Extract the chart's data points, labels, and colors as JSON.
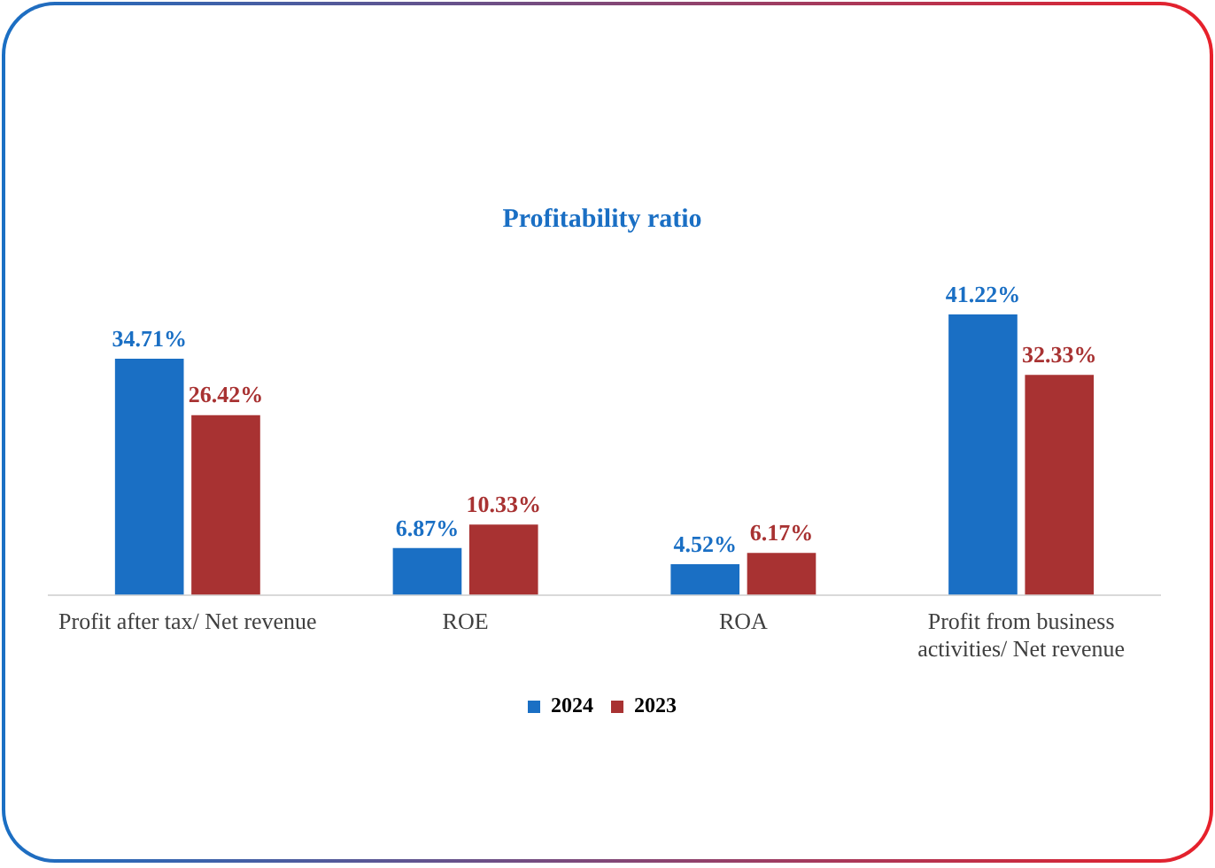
{
  "chart_data": {
    "type": "bar",
    "title": "Profitability ratio",
    "categories": [
      "Profit after tax/ Net revenue",
      "ROE",
      "ROA",
      "Profit from business activities/ Net revenue"
    ],
    "series": [
      {
        "name": "2024",
        "color": "#1a6fc4",
        "values": [
          34.71,
          6.87,
          4.52,
          41.22
        ],
        "value_labels": [
          "34.71%",
          "6.87%",
          "4.52%",
          "41.22%"
        ]
      },
      {
        "name": "2023",
        "color": "#a83232",
        "values": [
          26.42,
          10.33,
          6.17,
          32.33
        ],
        "value_labels": [
          "26.42%",
          "10.33%",
          "6.17%",
          "32.33%"
        ]
      }
    ],
    "legend": "bottom",
    "grid": false
  }
}
